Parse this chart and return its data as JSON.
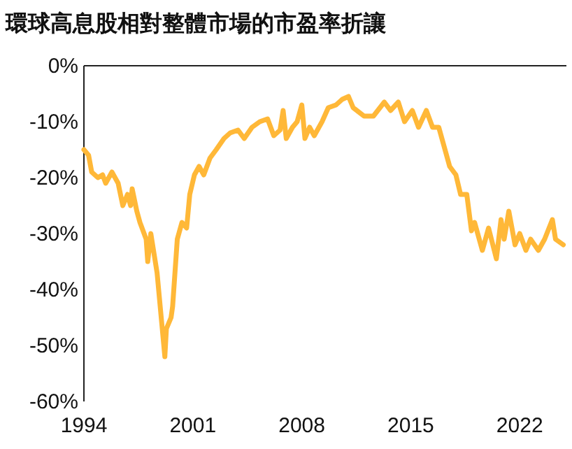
{
  "chart_data": {
    "type": "line",
    "title": "環球高息股相對整體市場的市盈率折讓",
    "x": [
      1994.0,
      1994.3,
      1994.5,
      1994.9,
      1995.2,
      1995.4,
      1995.8,
      1996.2,
      1996.5,
      1996.8,
      1997.0,
      1997.1,
      1997.4,
      1997.6,
      1998.0,
      1998.1,
      1998.3,
      1998.7,
      1999.0,
      1999.2,
      1999.3,
      1999.6,
      1999.7,
      2000.0,
      2000.3,
      2000.6,
      2000.8,
      2001.1,
      2001.4,
      2001.7,
      2002.1,
      2002.5,
      2003.0,
      2003.4,
      2003.9,
      2004.3,
      2004.8,
      2005.3,
      2005.8,
      2006.2,
      2006.6,
      2006.8,
      2007.0,
      2007.4,
      2007.7,
      2008.0,
      2008.2,
      2008.5,
      2008.8,
      2009.3,
      2009.7,
      2010.2,
      2010.6,
      2011.0,
      2011.3,
      2012.0,
      2012.6,
      2013.3,
      2013.7,
      2014.2,
      2014.6,
      2015.1,
      2015.5,
      2016.0,
      2016.4,
      2016.8,
      2017.1,
      2017.5,
      2017.9,
      2018.2,
      2018.6,
      2018.9,
      2019.1,
      2019.6,
      2020.0,
      2020.5,
      2020.8,
      2021.0,
      2021.3,
      2021.7,
      2022.0,
      2022.4,
      2022.7,
      2023.2,
      2023.6,
      2024.1,
      2024.3,
      2024.8
    ],
    "series": [
      {
        "color": "#ffb838",
        "values": [
          -15,
          -16,
          -19,
          -20,
          -19.5,
          -21,
          -19,
          -21,
          -25,
          -23,
          -25,
          -22,
          -26,
          -28,
          -31,
          -35,
          -30,
          -37,
          -46,
          -52,
          -47,
          -45,
          -43,
          -31,
          -28,
          -29,
          -23,
          -19.5,
          -18,
          -19.5,
          -16.5,
          -15,
          -13,
          -12,
          -11.5,
          -13,
          -11,
          -10,
          -9.5,
          -12.5,
          -11.5,
          -8,
          -13,
          -11,
          -10,
          -7,
          -13,
          -11,
          -12.5,
          -10,
          -7.5,
          -7,
          -6,
          -5.5,
          -7.5,
          -9,
          -9,
          -6.5,
          -8,
          -6.5,
          -10,
          -8,
          -11,
          -8,
          -11,
          -11,
          -14,
          -18,
          -19.5,
          -23,
          -23,
          -29.5,
          -28,
          -33,
          -29,
          -34.5,
          -27.5,
          -31,
          -26,
          -32,
          -30,
          -33,
          -31,
          -33,
          -31,
          -27.5,
          -31,
          -32
        ]
      }
    ],
    "xlim": [
      1994,
      2025
    ],
    "xticks": [
      1994,
      2001,
      2008,
      2015,
      2022
    ],
    "ylim": [
      -60,
      0
    ],
    "yticks": [
      {
        "value": 0,
        "label": "0%"
      },
      {
        "value": -10,
        "label": "-10%"
      },
      {
        "value": -20,
        "label": "-20%"
      },
      {
        "value": -30,
        "label": "-30%"
      },
      {
        "value": -40,
        "label": "-40%"
      },
      {
        "value": -50,
        "label": "-50%"
      },
      {
        "value": -60,
        "label": "-60%"
      }
    ],
    "grid": false,
    "marker": "none",
    "line_style": "solid"
  }
}
